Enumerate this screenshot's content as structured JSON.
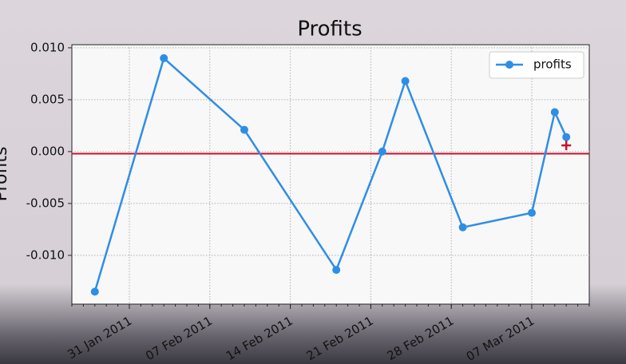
{
  "chart_data": {
    "type": "line",
    "title": "Profits",
    "ylabel": "Profits",
    "x": [
      "2011-01-28",
      "2011-02-03",
      "2011-02-10",
      "2011-02-18",
      "2011-02-22",
      "2011-02-24",
      "2011-03-01",
      "2011-03-07",
      "2011-03-09",
      "2011-03-10"
    ],
    "series": [
      {
        "name": "profits",
        "color": "#2e8ee6",
        "values": [
          -0.0135,
          0.009,
          0.0021,
          -0.0114,
          0.0,
          0.0068,
          -0.0073,
          -0.0059,
          0.0038,
          0.0014
        ]
      }
    ],
    "xlim": [
      "2011-01-26",
      "2011-03-12"
    ],
    "xticks": [
      {
        "value": "2011-01-31",
        "label": "31 Jan 2011"
      },
      {
        "value": "2011-02-07",
        "label": "07 Feb 2011"
      },
      {
        "value": "2011-02-14",
        "label": "14 Feb 2011"
      },
      {
        "value": "2011-02-21",
        "label": "21 Feb 2011"
      },
      {
        "value": "2011-02-28",
        "label": "28 Feb 2011"
      },
      {
        "value": "2011-03-07",
        "label": "07 Mar 2011"
      }
    ],
    "ylim": [
      -0.0147,
      0.0103
    ],
    "yticks": [
      {
        "value": 0.01,
        "label": "0.010"
      },
      {
        "value": 0.005,
        "label": "0.005"
      },
      {
        "value": 0,
        "label": "0.000"
      },
      {
        "value": -0.005,
        "label": "-0.005"
      },
      {
        "value": -0.01,
        "label": "-0.010"
      }
    ],
    "hline": {
      "value": -0.0002,
      "color": "#c8102e"
    },
    "cursor": {
      "x": "2011-03-10",
      "y": 0.0006,
      "color": "#c8102e"
    },
    "grid": true,
    "legend": "upper right"
  }
}
